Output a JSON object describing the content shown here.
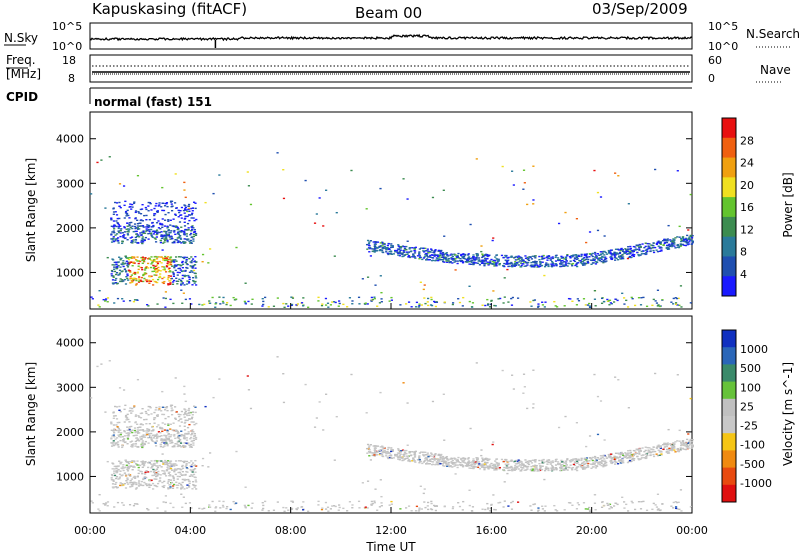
{
  "header": {
    "station": "Kapuskasing (fitACF)",
    "beam": "Beam 00",
    "date": "03/Sep/2009"
  },
  "noise_panel": {
    "left_label": "N.Sky",
    "right_label": "N.Search",
    "left_ticks": [
      "10^5",
      "10^0"
    ],
    "right_ticks": [
      "10^5",
      "10^0"
    ]
  },
  "freq_panel": {
    "left_label_1": "Freq.",
    "left_label_2": "[MHz]",
    "right_label": "Nave",
    "left_ticks": [
      "18",
      "8"
    ],
    "right_ticks": [
      "60",
      "0"
    ]
  },
  "cpid": {
    "label": "CPID",
    "mode": "normal (fast) 151"
  },
  "colors": {
    "power_scale": [
      "#1a1aff",
      "#1f4fb0",
      "#2a7a9a",
      "#3c8c50",
      "#63c42e",
      "#f0e020",
      "#f0a010",
      "#f06010",
      "#e81010"
    ],
    "velocity_scale": [
      "#1030c0",
      "#2a66b8",
      "#3a8a6a",
      "#66c23a",
      "#c0c0c0",
      "#c8c8c8",
      "#f5c515",
      "#f08a10",
      "#e84a10",
      "#e01010"
    ]
  },
  "chart_data": [
    {
      "type": "heatmap",
      "title": "",
      "ylabel": "Slant Range [km]",
      "y_ticks": [
        "1000",
        "2000",
        "3000",
        "4000"
      ],
      "ylim": [
        180,
        4600
      ],
      "x_ticks": [
        "00:00",
        "04:00",
        "08:00",
        "12:00",
        "16:00",
        "20:00",
        "00:00"
      ],
      "xlim_hours": [
        0,
        24
      ],
      "colorbar": {
        "label": "Power [dB]",
        "ticks": [
          "4",
          "8",
          "12",
          "16",
          "20",
          "24",
          "28"
        ],
        "range": [
          0,
          30
        ]
      },
      "features": [
        {
          "desc": "E/F echoes 00-04 UT",
          "x_hours": [
            0.8,
            4.3
          ],
          "range_km": [
            700,
            2500
          ],
          "power_db": [
            3,
            30
          ]
        },
        {
          "desc": "ground scatter band 11-24 UT",
          "x_hours": [
            11.0,
            24.0
          ],
          "range_km": [
            1100,
            2000
          ],
          "power_db": [
            3,
            16
          ]
        },
        {
          "desc": "near-range sporadic echoes",
          "x_hours": [
            0,
            24
          ],
          "range_km": [
            200,
            450
          ],
          "power_db": [
            3,
            20
          ]
        }
      ]
    },
    {
      "type": "heatmap",
      "title": "",
      "ylabel": "Slant Range [km]",
      "y_ticks": [
        "1000",
        "2000",
        "3000",
        "4000"
      ],
      "ylim": [
        180,
        4600
      ],
      "x_ticks": [
        "00:00",
        "04:00",
        "08:00",
        "12:00",
        "16:00",
        "20:00",
        "00:00"
      ],
      "xlim_hours": [
        0,
        24
      ],
      "xlabel": "Time UT",
      "colorbar": {
        "label": "Velocity [m s^-1]",
        "ticks": [
          "1000",
          "500",
          "100",
          "25",
          "-25",
          "-100",
          "-500",
          "-1000"
        ]
      },
      "features": [
        {
          "desc": "near-zero velocity (ground scatter) 00-04 UT",
          "x_hours": [
            0.8,
            4.3
          ],
          "range_km": [
            700,
            2500
          ],
          "velocity_ms": [
            -25,
            25
          ]
        },
        {
          "desc": "near-zero velocity band 11-24 UT",
          "x_hours": [
            11.0,
            24.0
          ],
          "range_km": [
            1100,
            2000
          ],
          "velocity_ms": [
            -25,
            25
          ]
        }
      ]
    }
  ]
}
